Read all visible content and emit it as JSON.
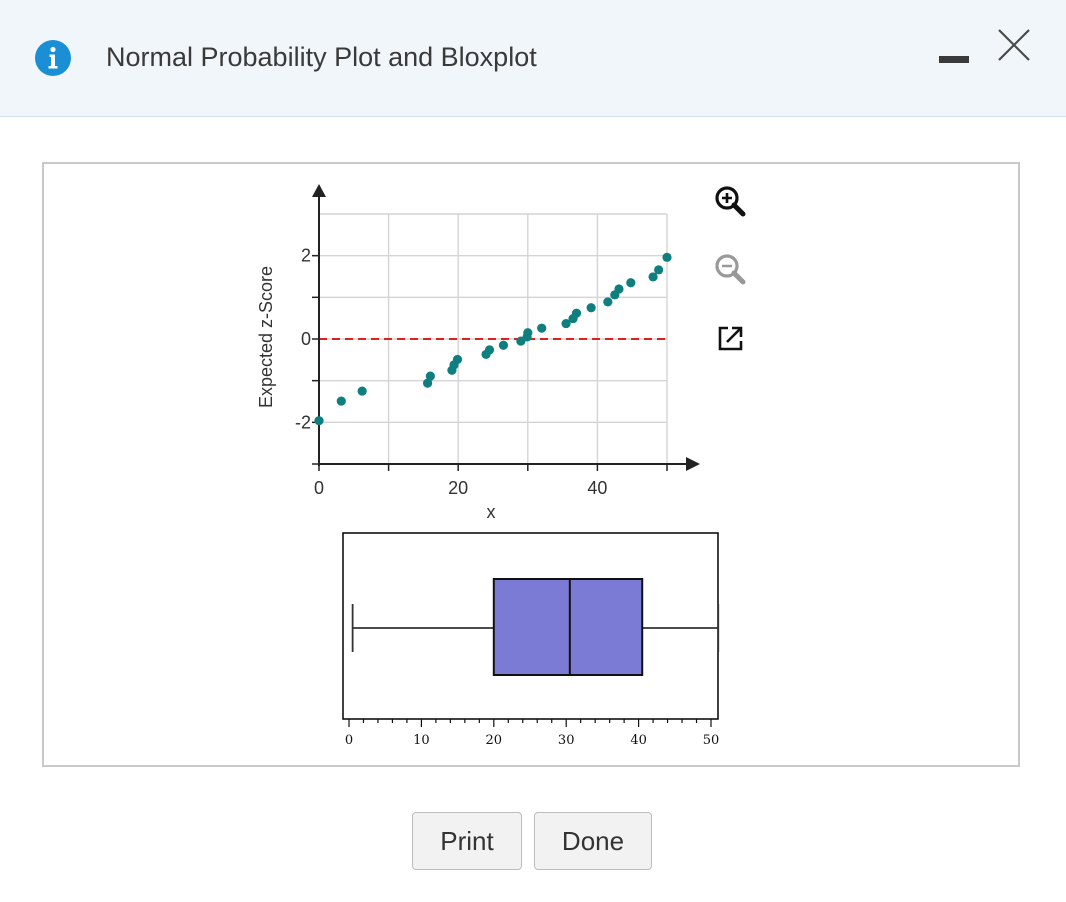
{
  "window": {
    "title": "Normal Probability Plot and Bloxplot",
    "icons": {
      "info": "info-icon",
      "minimize": "minimize-icon",
      "close": "close-icon"
    }
  },
  "toolbar": {
    "icons": [
      "zoom-in-icon",
      "zoom-out-icon",
      "open-external-icon"
    ]
  },
  "buttons": {
    "print": "Print",
    "done": "Done"
  },
  "colors": {
    "accent": "#1a8fd6",
    "points": "#0e7f7e",
    "zero_line": "#e02020",
    "box_fill": "#7b7bd6"
  },
  "chart_data": [
    {
      "type": "scatter",
      "title": "",
      "xlabel": "x",
      "ylabel": "Expected z-Score",
      "xlim": [
        0,
        50
      ],
      "ylim": [
        -3,
        3
      ],
      "x_ticks": [
        "0",
        "20",
        "40"
      ],
      "y_ticks": [
        "2",
        "0",
        "-2"
      ],
      "grid": true,
      "reference_line": {
        "y": 0,
        "style": "dashed",
        "color": "#e02020"
      },
      "points": [
        {
          "x": 0,
          "y": -1.96
        },
        {
          "x": 3.2,
          "y": -1.49
        },
        {
          "x": 6.2,
          "y": -1.25
        },
        {
          "x": 15.6,
          "y": -1.06
        },
        {
          "x": 16.0,
          "y": -0.89
        },
        {
          "x": 19.1,
          "y": -0.75
        },
        {
          "x": 19.4,
          "y": -0.62
        },
        {
          "x": 19.9,
          "y": -0.49
        },
        {
          "x": 24.0,
          "y": -0.37
        },
        {
          "x": 24.5,
          "y": -0.26
        },
        {
          "x": 26.5,
          "y": -0.15
        },
        {
          "x": 29.0,
          "y": -0.05
        },
        {
          "x": 29.9,
          "y": 0.05
        },
        {
          "x": 30.0,
          "y": 0.15
        },
        {
          "x": 32.0,
          "y": 0.26
        },
        {
          "x": 35.5,
          "y": 0.37
        },
        {
          "x": 36.5,
          "y": 0.49
        },
        {
          "x": 37.0,
          "y": 0.62
        },
        {
          "x": 39.1,
          "y": 0.75
        },
        {
          "x": 41.5,
          "y": 0.89
        },
        {
          "x": 42.5,
          "y": 1.06
        },
        {
          "x": 43.1,
          "y": 1.2
        },
        {
          "x": 44.8,
          "y": 1.35
        },
        {
          "x": 48.0,
          "y": 1.49
        },
        {
          "x": 48.8,
          "y": 1.66
        },
        {
          "x": 50.0,
          "y": 1.96
        }
      ]
    },
    {
      "type": "boxplot",
      "xlim": [
        0,
        50
      ],
      "x_ticks": [
        "0",
        "10",
        "20",
        "30",
        "40",
        "50"
      ],
      "min": 0.5,
      "q1": 20,
      "median": 30.5,
      "q3": 40.5,
      "max": 51
    }
  ]
}
